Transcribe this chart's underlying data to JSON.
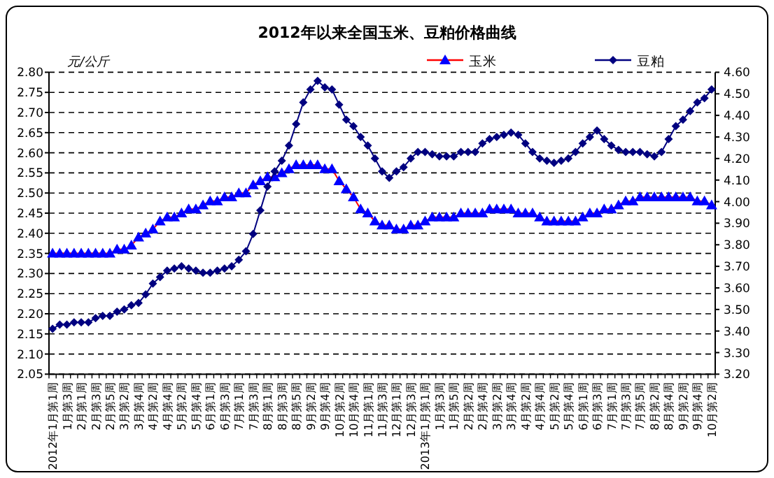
{
  "chart_data": {
    "type": "line",
    "title": "2012年以来全国玉米、豆粕价格曲线",
    "ylabel": "元/公斤",
    "categories": [
      "2012年1月第1周",
      null,
      "1月第3周",
      null,
      "2月第1周",
      null,
      "2月第3周",
      null,
      "2月第5周",
      null,
      "3月第2周",
      null,
      "3月第4周",
      null,
      "4月第2周",
      null,
      "4月第4周",
      null,
      "5月第2周",
      null,
      "5月第4周",
      null,
      "6月第1周",
      null,
      "6月第3周",
      null,
      "7月第1周",
      null,
      "7月第3周",
      null,
      "8月第1周",
      null,
      "8月第3周",
      null,
      "8月第5周",
      null,
      "9月第2周",
      null,
      "9月第4周",
      null,
      "10月第2周",
      null,
      "10月第4周",
      null,
      "11月第1周",
      null,
      "11月第3周",
      null,
      "12月第1周",
      null,
      "12月第3周",
      null,
      "2013年1月第1周",
      null,
      "1月第3周",
      null,
      "1月第5周",
      null,
      "2月第2周",
      null,
      "2月第4周",
      null,
      "3月第2周",
      null,
      "3月第4周",
      null,
      "4月第2周",
      null,
      "4月第4周",
      null,
      "5月第2周",
      null,
      "5月第4周",
      null,
      "6月第1周",
      null,
      "6月第3周",
      null,
      "7月第1周",
      null,
      "7月第3周",
      null,
      "7月第5周",
      null,
      "8月第2周",
      null,
      "8月第4周",
      null,
      "9月第2周",
      null,
      "9月第4周",
      null,
      "10月第2周"
    ],
    "series": [
      {
        "name": "玉米",
        "color": "#0000ff",
        "marker": "triangle",
        "values": [
          2.35,
          2.35,
          2.35,
          2.35,
          2.35,
          2.35,
          2.35,
          2.35,
          2.35,
          2.36,
          2.36,
          2.37,
          2.39,
          2.4,
          2.41,
          2.43,
          2.44,
          2.44,
          2.45,
          2.46,
          2.46,
          2.47,
          2.48,
          2.48,
          2.49,
          2.49,
          2.5,
          2.5,
          2.52,
          2.53,
          2.54,
          2.54,
          2.55,
          2.56,
          2.57,
          2.57,
          2.57,
          2.57,
          2.56,
          2.56,
          2.53,
          2.51,
          2.49,
          2.46,
          2.45,
          2.43,
          2.42,
          2.42,
          2.41,
          2.41,
          2.42,
          2.42,
          2.43,
          2.44,
          2.44,
          2.44,
          2.44,
          2.45,
          2.45,
          2.45,
          2.45,
          2.46,
          2.46,
          2.46,
          2.46,
          2.45,
          2.45,
          2.45,
          2.44,
          2.43,
          2.43,
          2.43,
          2.43,
          2.43,
          2.44,
          2.45,
          2.45,
          2.46,
          2.46,
          2.47,
          2.48,
          2.48,
          2.49,
          2.49,
          2.49,
          2.49,
          2.49,
          2.49,
          2.49,
          2.49,
          2.48,
          2.48,
          2.47
        ]
      },
      {
        "name": "豆粕",
        "color": "#000080",
        "marker": "diamond",
        "axis": "y2",
        "values": [
          3.41,
          3.43,
          3.43,
          3.44,
          3.44,
          3.44,
          3.46,
          3.47,
          3.47,
          3.49,
          3.5,
          3.52,
          3.53,
          3.57,
          3.62,
          3.65,
          3.68,
          3.69,
          3.7,
          3.69,
          3.68,
          3.67,
          3.67,
          3.68,
          3.69,
          3.7,
          3.73,
          3.77,
          3.85,
          3.96,
          4.07,
          4.14,
          4.19,
          4.26,
          4.36,
          4.46,
          4.52,
          4.56,
          4.53,
          4.52,
          4.45,
          4.38,
          4.35,
          4.3,
          4.26,
          4.2,
          4.14,
          4.11,
          4.14,
          4.16,
          4.2,
          4.23,
          4.23,
          4.22,
          4.21,
          4.21,
          4.21,
          4.23,
          4.23,
          4.23,
          4.27,
          4.29,
          4.3,
          4.31,
          4.32,
          4.31,
          4.27,
          4.23,
          4.2,
          4.19,
          4.18,
          4.19,
          4.2,
          4.23,
          4.27,
          4.3,
          4.33,
          4.29,
          4.26,
          4.24,
          4.23,
          4.23,
          4.23,
          4.22,
          4.21,
          4.23,
          4.29,
          4.35,
          4.38,
          4.42,
          4.46,
          4.48,
          4.52
        ]
      }
    ],
    "ylim": [
      2.05,
      2.8
    ],
    "yticks": [
      2.05,
      {
        "value": 2.1,
        "label": "2.10"
      },
      2.15,
      {
        "value": 2.2,
        "label": "2.20"
      },
      2.25,
      {
        "value": 2.3,
        "label": "2.30"
      },
      2.35,
      {
        "value": 2.4,
        "label": "2.40"
      },
      2.45,
      {
        "value": 2.5,
        "label": "2.50"
      },
      2.55,
      {
        "value": 2.6,
        "label": "2.60"
      },
      2.65,
      {
        "value": 2.7,
        "label": "2.70"
      },
      2.75,
      {
        "value": 2.8,
        "label": "2.80"
      }
    ],
    "y2lim": [
      3.2,
      4.6
    ],
    "y2ticks": [
      {
        "value": 3.2,
        "label": "3.20"
      },
      {
        "value": 3.3,
        "label": "3.30"
      },
      {
        "value": 3.4,
        "label": "3.40"
      },
      {
        "value": 3.5,
        "label": "3.50"
      },
      {
        "value": 3.6,
        "label": "3.60"
      },
      {
        "value": 3.7,
        "label": "3.70"
      },
      {
        "value": 3.8,
        "label": "3.80"
      },
      {
        "value": 3.9,
        "label": "3.90"
      },
      {
        "value": 4,
        "label": "4.00"
      },
      {
        "value": 4.1,
        "label": "4.10"
      },
      {
        "value": 4.2,
        "label": "4.20"
      },
      {
        "value": 4.3,
        "label": "4.30"
      },
      {
        "value": 4.4,
        "label": "4.40"
      },
      {
        "value": 4.5,
        "label": "4.50"
      },
      {
        "value": 4.6,
        "label": "4.60"
      }
    ],
    "grid": "y",
    "legend": "top right"
  }
}
